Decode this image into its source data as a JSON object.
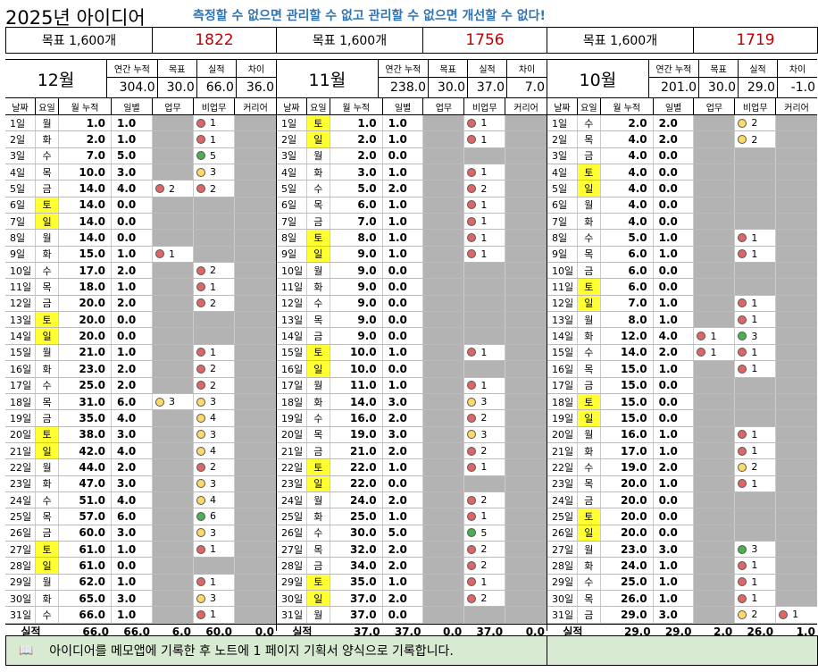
{
  "header": {
    "title": "2025년 아이디어",
    "slogan": "측정할 수 없으면 관리할 수 없고 관리할 수 없으면 개선할 수 없다!",
    "slogan_color": "#2e74b5"
  },
  "goals": [
    {
      "label": "목표 1,600개",
      "value": "1822",
      "value_color": "#c00000"
    },
    {
      "label": "목표 1,600개",
      "value": "1756",
      "value_color": "#c00000"
    },
    {
      "label": "목표 1,600개",
      "value": "1719",
      "value_color": "#c00000"
    }
  ],
  "columns": {
    "date": "날짜",
    "dow": "요일",
    "cum": "월 누적",
    "day": "일별",
    "work": "업무",
    "nonwork": "비업무",
    "career": "커리어"
  },
  "summary_labels": {
    "annual": "연간 누적",
    "goal": "목표",
    "actual": "실적",
    "diff": "차이"
  },
  "totals_label": "실적",
  "months": [
    {
      "name": "12월",
      "annual": "304.0",
      "goal": "30.0",
      "actual": "66.0",
      "diff": "36.0",
      "totals": {
        "cum": "66.0",
        "day": "66.0",
        "work": "6.0",
        "nonwork": "60.0",
        "career": "0.0"
      },
      "days": [
        {
          "d": "1일",
          "w": "월",
          "c": "1.0",
          "v": "1.0",
          "wk": "",
          "wkc": "",
          "nw": "1",
          "nwc": "r"
        },
        {
          "d": "2일",
          "w": "화",
          "c": "2.0",
          "v": "1.0",
          "wk": "",
          "wkc": "",
          "nw": "1",
          "nwc": "r"
        },
        {
          "d": "3일",
          "w": "수",
          "c": "7.0",
          "v": "5.0",
          "wk": "",
          "wkc": "",
          "nw": "5",
          "nwc": "g"
        },
        {
          "d": "4일",
          "w": "목",
          "c": "10.0",
          "v": "3.0",
          "wk": "",
          "wkc": "",
          "nw": "3",
          "nwc": "y"
        },
        {
          "d": "5일",
          "w": "금",
          "c": "14.0",
          "v": "4.0",
          "wk": "2",
          "wkc": "r",
          "nw": "2",
          "nwc": "r"
        },
        {
          "d": "6일",
          "w": "토",
          "c": "14.0",
          "v": "0.0",
          "wk": "",
          "wkc": "",
          "nw": "",
          "nwc": "",
          "we": true
        },
        {
          "d": "7일",
          "w": "일",
          "c": "14.0",
          "v": "0.0",
          "wk": "",
          "wkc": "",
          "nw": "",
          "nwc": "",
          "we": true
        },
        {
          "d": "8일",
          "w": "월",
          "c": "14.0",
          "v": "0.0",
          "wk": "",
          "wkc": "",
          "nw": "",
          "nwc": ""
        },
        {
          "d": "9일",
          "w": "화",
          "c": "15.0",
          "v": "1.0",
          "wk": "1",
          "wkc": "r",
          "nw": "",
          "nwc": ""
        },
        {
          "d": "10일",
          "w": "수",
          "c": "17.0",
          "v": "2.0",
          "wk": "",
          "wkc": "",
          "nw": "2",
          "nwc": "r"
        },
        {
          "d": "11일",
          "w": "목",
          "c": "18.0",
          "v": "1.0",
          "wk": "",
          "wkc": "",
          "nw": "1",
          "nwc": "r"
        },
        {
          "d": "12일",
          "w": "금",
          "c": "20.0",
          "v": "2.0",
          "wk": "",
          "wkc": "",
          "nw": "2",
          "nwc": "r"
        },
        {
          "d": "13일",
          "w": "토",
          "c": "20.0",
          "v": "0.0",
          "wk": "",
          "wkc": "",
          "nw": "",
          "nwc": "",
          "we": true
        },
        {
          "d": "14일",
          "w": "일",
          "c": "20.0",
          "v": "0.0",
          "wk": "",
          "wkc": "",
          "nw": "",
          "nwc": "",
          "we": true
        },
        {
          "d": "15일",
          "w": "월",
          "c": "21.0",
          "v": "1.0",
          "wk": "",
          "wkc": "",
          "nw": "1",
          "nwc": "r"
        },
        {
          "d": "16일",
          "w": "화",
          "c": "23.0",
          "v": "2.0",
          "wk": "",
          "wkc": "",
          "nw": "2",
          "nwc": "r"
        },
        {
          "d": "17일",
          "w": "수",
          "c": "25.0",
          "v": "2.0",
          "wk": "",
          "wkc": "",
          "nw": "2",
          "nwc": "r"
        },
        {
          "d": "18일",
          "w": "목",
          "c": "31.0",
          "v": "6.0",
          "wk": "3",
          "wkc": "y",
          "nw": "3",
          "nwc": "y"
        },
        {
          "d": "19일",
          "w": "금",
          "c": "35.0",
          "v": "4.0",
          "wk": "",
          "wkc": "",
          "nw": "4",
          "nwc": "y"
        },
        {
          "d": "20일",
          "w": "토",
          "c": "38.0",
          "v": "3.0",
          "wk": "",
          "wkc": "",
          "nw": "3",
          "nwc": "y",
          "we": true
        },
        {
          "d": "21일",
          "w": "일",
          "c": "42.0",
          "v": "4.0",
          "wk": "",
          "wkc": "",
          "nw": "4",
          "nwc": "y",
          "we": true
        },
        {
          "d": "22일",
          "w": "월",
          "c": "44.0",
          "v": "2.0",
          "wk": "",
          "wkc": "",
          "nw": "2",
          "nwc": "r"
        },
        {
          "d": "23일",
          "w": "화",
          "c": "47.0",
          "v": "3.0",
          "wk": "",
          "wkc": "",
          "nw": "3",
          "nwc": "y"
        },
        {
          "d": "24일",
          "w": "수",
          "c": "51.0",
          "v": "4.0",
          "wk": "",
          "wkc": "",
          "nw": "4",
          "nwc": "y"
        },
        {
          "d": "25일",
          "w": "목",
          "c": "57.0",
          "v": "6.0",
          "wk": "",
          "wkc": "",
          "nw": "6",
          "nwc": "g"
        },
        {
          "d": "26일",
          "w": "금",
          "c": "60.0",
          "v": "3.0",
          "wk": "",
          "wkc": "",
          "nw": "3",
          "nwc": "y"
        },
        {
          "d": "27일",
          "w": "토",
          "c": "61.0",
          "v": "1.0",
          "wk": "",
          "wkc": "",
          "nw": "1",
          "nwc": "r",
          "we": true
        },
        {
          "d": "28일",
          "w": "일",
          "c": "61.0",
          "v": "0.0",
          "wk": "",
          "wkc": "",
          "nw": "",
          "nwc": "",
          "we": true
        },
        {
          "d": "29일",
          "w": "월",
          "c": "62.0",
          "v": "1.0",
          "wk": "",
          "wkc": "",
          "nw": "1",
          "nwc": "r"
        },
        {
          "d": "30일",
          "w": "화",
          "c": "65.0",
          "v": "3.0",
          "wk": "",
          "wkc": "",
          "nw": "3",
          "nwc": "y"
        },
        {
          "d": "31일",
          "w": "수",
          "c": "66.0",
          "v": "1.0",
          "wk": "",
          "wkc": "",
          "nw": "1",
          "nwc": "r"
        }
      ]
    },
    {
      "name": "11월",
      "annual": "238.0",
      "goal": "30.0",
      "actual": "37.0",
      "diff": "7.0",
      "totals": {
        "cum": "37.0",
        "day": "37.0",
        "work": "0.0",
        "nonwork": "37.0",
        "career": "0.0"
      },
      "days": [
        {
          "d": "1일",
          "w": "토",
          "c": "1.0",
          "v": "1.0",
          "wk": "",
          "wkc": "",
          "nw": "1",
          "nwc": "r",
          "we": true
        },
        {
          "d": "2일",
          "w": "일",
          "c": "2.0",
          "v": "1.0",
          "wk": "",
          "wkc": "",
          "nw": "1",
          "nwc": "r",
          "we": true
        },
        {
          "d": "3일",
          "w": "월",
          "c": "2.0",
          "v": "0.0",
          "wk": "",
          "wkc": "",
          "nw": "",
          "nwc": ""
        },
        {
          "d": "4일",
          "w": "화",
          "c": "3.0",
          "v": "1.0",
          "wk": "",
          "wkc": "",
          "nw": "1",
          "nwc": "r"
        },
        {
          "d": "5일",
          "w": "수",
          "c": "5.0",
          "v": "2.0",
          "wk": "",
          "wkc": "",
          "nw": "2",
          "nwc": "r"
        },
        {
          "d": "6일",
          "w": "목",
          "c": "6.0",
          "v": "1.0",
          "wk": "",
          "wkc": "",
          "nw": "1",
          "nwc": "r"
        },
        {
          "d": "7일",
          "w": "금",
          "c": "7.0",
          "v": "1.0",
          "wk": "",
          "wkc": "",
          "nw": "1",
          "nwc": "r"
        },
        {
          "d": "8일",
          "w": "토",
          "c": "8.0",
          "v": "1.0",
          "wk": "",
          "wkc": "",
          "nw": "1",
          "nwc": "r",
          "we": true
        },
        {
          "d": "9일",
          "w": "일",
          "c": "9.0",
          "v": "1.0",
          "wk": "",
          "wkc": "",
          "nw": "1",
          "nwc": "r",
          "we": true
        },
        {
          "d": "10일",
          "w": "월",
          "c": "9.0",
          "v": "0.0",
          "wk": "",
          "wkc": "",
          "nw": "",
          "nwc": ""
        },
        {
          "d": "11일",
          "w": "화",
          "c": "9.0",
          "v": "0.0",
          "wk": "",
          "wkc": "",
          "nw": "",
          "nwc": ""
        },
        {
          "d": "12일",
          "w": "수",
          "c": "9.0",
          "v": "0.0",
          "wk": "",
          "wkc": "",
          "nw": "",
          "nwc": ""
        },
        {
          "d": "13일",
          "w": "목",
          "c": "9.0",
          "v": "0.0",
          "wk": "",
          "wkc": "",
          "nw": "",
          "nwc": ""
        },
        {
          "d": "14일",
          "w": "금",
          "c": "9.0",
          "v": "0.0",
          "wk": "",
          "wkc": "",
          "nw": "",
          "nwc": ""
        },
        {
          "d": "15일",
          "w": "토",
          "c": "10.0",
          "v": "1.0",
          "wk": "",
          "wkc": "",
          "nw": "1",
          "nwc": "r",
          "we": true
        },
        {
          "d": "16일",
          "w": "일",
          "c": "10.0",
          "v": "0.0",
          "wk": "",
          "wkc": "",
          "nw": "",
          "nwc": "",
          "we": true
        },
        {
          "d": "17일",
          "w": "월",
          "c": "11.0",
          "v": "1.0",
          "wk": "",
          "wkc": "",
          "nw": "1",
          "nwc": "r"
        },
        {
          "d": "18일",
          "w": "화",
          "c": "14.0",
          "v": "3.0",
          "wk": "",
          "wkc": "",
          "nw": "3",
          "nwc": "y"
        },
        {
          "d": "19일",
          "w": "수",
          "c": "16.0",
          "v": "2.0",
          "wk": "",
          "wkc": "",
          "nw": "2",
          "nwc": "r"
        },
        {
          "d": "20일",
          "w": "목",
          "c": "19.0",
          "v": "3.0",
          "wk": "",
          "wkc": "",
          "nw": "3",
          "nwc": "y"
        },
        {
          "d": "21일",
          "w": "금",
          "c": "21.0",
          "v": "2.0",
          "wk": "",
          "wkc": "",
          "nw": "2",
          "nwc": "r"
        },
        {
          "d": "22일",
          "w": "토",
          "c": "22.0",
          "v": "1.0",
          "wk": "",
          "wkc": "",
          "nw": "1",
          "nwc": "r",
          "we": true
        },
        {
          "d": "23일",
          "w": "일",
          "c": "22.0",
          "v": "0.0",
          "wk": "",
          "wkc": "",
          "nw": "",
          "nwc": "",
          "we": true
        },
        {
          "d": "24일",
          "w": "월",
          "c": "24.0",
          "v": "2.0",
          "wk": "",
          "wkc": "",
          "nw": "2",
          "nwc": "r"
        },
        {
          "d": "25일",
          "w": "화",
          "c": "25.0",
          "v": "1.0",
          "wk": "",
          "wkc": "",
          "nw": "1",
          "nwc": "r"
        },
        {
          "d": "26일",
          "w": "수",
          "c": "30.0",
          "v": "5.0",
          "wk": "",
          "wkc": "",
          "nw": "5",
          "nwc": "g"
        },
        {
          "d": "27일",
          "w": "목",
          "c": "32.0",
          "v": "2.0",
          "wk": "",
          "wkc": "",
          "nw": "2",
          "nwc": "r"
        },
        {
          "d": "28일",
          "w": "금",
          "c": "34.0",
          "v": "2.0",
          "wk": "",
          "wkc": "",
          "nw": "2",
          "nwc": "r"
        },
        {
          "d": "29일",
          "w": "토",
          "c": "35.0",
          "v": "1.0",
          "wk": "",
          "wkc": "",
          "nw": "1",
          "nwc": "r",
          "we": true
        },
        {
          "d": "30일",
          "w": "일",
          "c": "37.0",
          "v": "2.0",
          "wk": "",
          "wkc": "",
          "nw": "2",
          "nwc": "r",
          "we": true
        },
        {
          "d": "31일",
          "w": "월",
          "c": "37.0",
          "v": "0.0",
          "wk": "",
          "wkc": "",
          "nw": "",
          "nwc": ""
        }
      ]
    },
    {
      "name": "10월",
      "annual": "201.0",
      "goal": "30.0",
      "actual": "29.0",
      "diff": "-1.0",
      "totals": {
        "cum": "29.0",
        "day": "29.0",
        "work": "2.0",
        "nonwork": "26.0",
        "career": "1.0"
      },
      "days": [
        {
          "d": "1일",
          "w": "수",
          "c": "2.0",
          "v": "2.0",
          "wk": "",
          "wkc": "",
          "nw": "2",
          "nwc": "y"
        },
        {
          "d": "2일",
          "w": "목",
          "c": "4.0",
          "v": "2.0",
          "wk": "",
          "wkc": "",
          "nw": "2",
          "nwc": "y"
        },
        {
          "d": "3일",
          "w": "금",
          "c": "4.0",
          "v": "0.0",
          "wk": "",
          "wkc": "",
          "nw": "",
          "nwc": ""
        },
        {
          "d": "4일",
          "w": "토",
          "c": "4.0",
          "v": "0.0",
          "wk": "",
          "wkc": "",
          "nw": "",
          "nwc": "",
          "we": true
        },
        {
          "d": "5일",
          "w": "일",
          "c": "4.0",
          "v": "0.0",
          "wk": "",
          "wkc": "",
          "nw": "",
          "nwc": "",
          "we": true
        },
        {
          "d": "6일",
          "w": "월",
          "c": "4.0",
          "v": "0.0",
          "wk": "",
          "wkc": "",
          "nw": "",
          "nwc": ""
        },
        {
          "d": "7일",
          "w": "화",
          "c": "4.0",
          "v": "0.0",
          "wk": "",
          "wkc": "",
          "nw": "",
          "nwc": ""
        },
        {
          "d": "8일",
          "w": "수",
          "c": "5.0",
          "v": "1.0",
          "wk": "",
          "wkc": "",
          "nw": "1",
          "nwc": "r"
        },
        {
          "d": "9일",
          "w": "목",
          "c": "6.0",
          "v": "1.0",
          "wk": "",
          "wkc": "",
          "nw": "1",
          "nwc": "r"
        },
        {
          "d": "10일",
          "w": "금",
          "c": "6.0",
          "v": "0.0",
          "wk": "",
          "wkc": "",
          "nw": "",
          "nwc": ""
        },
        {
          "d": "11일",
          "w": "토",
          "c": "6.0",
          "v": "0.0",
          "wk": "",
          "wkc": "",
          "nw": "",
          "nwc": "",
          "we": true
        },
        {
          "d": "12일",
          "w": "일",
          "c": "7.0",
          "v": "1.0",
          "wk": "",
          "wkc": "",
          "nw": "1",
          "nwc": "r",
          "we": true
        },
        {
          "d": "13일",
          "w": "월",
          "c": "8.0",
          "v": "1.0",
          "wk": "",
          "wkc": "",
          "nw": "1",
          "nwc": "r"
        },
        {
          "d": "14일",
          "w": "화",
          "c": "12.0",
          "v": "4.0",
          "wk": "1",
          "wkc": "r",
          "nw": "3",
          "nwc": "g"
        },
        {
          "d": "15일",
          "w": "수",
          "c": "14.0",
          "v": "2.0",
          "wk": "1",
          "wkc": "r",
          "nw": "1",
          "nwc": "r"
        },
        {
          "d": "16일",
          "w": "목",
          "c": "15.0",
          "v": "1.0",
          "wk": "",
          "wkc": "",
          "nw": "1",
          "nwc": "r"
        },
        {
          "d": "17일",
          "w": "금",
          "c": "15.0",
          "v": "0.0",
          "wk": "",
          "wkc": "",
          "nw": "",
          "nwc": ""
        },
        {
          "d": "18일",
          "w": "토",
          "c": "15.0",
          "v": "0.0",
          "wk": "",
          "wkc": "",
          "nw": "",
          "nwc": "",
          "we": true
        },
        {
          "d": "19일",
          "w": "일",
          "c": "15.0",
          "v": "0.0",
          "wk": "",
          "wkc": "",
          "nw": "",
          "nwc": "",
          "we": true
        },
        {
          "d": "20일",
          "w": "월",
          "c": "16.0",
          "v": "1.0",
          "wk": "",
          "wkc": "",
          "nw": "1",
          "nwc": "r"
        },
        {
          "d": "21일",
          "w": "화",
          "c": "17.0",
          "v": "1.0",
          "wk": "",
          "wkc": "",
          "nw": "1",
          "nwc": "r"
        },
        {
          "d": "22일",
          "w": "수",
          "c": "19.0",
          "v": "2.0",
          "wk": "",
          "wkc": "",
          "nw": "2",
          "nwc": "y"
        },
        {
          "d": "23일",
          "w": "목",
          "c": "20.0",
          "v": "1.0",
          "wk": "",
          "wkc": "",
          "nw": "1",
          "nwc": "r"
        },
        {
          "d": "24일",
          "w": "금",
          "c": "20.0",
          "v": "0.0",
          "wk": "",
          "wkc": "",
          "nw": "",
          "nwc": ""
        },
        {
          "d": "25일",
          "w": "토",
          "c": "20.0",
          "v": "0.0",
          "wk": "",
          "wkc": "",
          "nw": "",
          "nwc": "",
          "we": true
        },
        {
          "d": "26일",
          "w": "일",
          "c": "20.0",
          "v": "0.0",
          "wk": "",
          "wkc": "",
          "nw": "",
          "nwc": "",
          "we": true
        },
        {
          "d": "27일",
          "w": "월",
          "c": "23.0",
          "v": "3.0",
          "wk": "",
          "wkc": "",
          "nw": "3",
          "nwc": "g"
        },
        {
          "d": "28일",
          "w": "화",
          "c": "24.0",
          "v": "1.0",
          "wk": "",
          "wkc": "",
          "nw": "1",
          "nwc": "r"
        },
        {
          "d": "29일",
          "w": "수",
          "c": "25.0",
          "v": "1.0",
          "wk": "",
          "wkc": "",
          "nw": "1",
          "nwc": "r"
        },
        {
          "d": "30일",
          "w": "목",
          "c": "26.0",
          "v": "1.0",
          "wk": "",
          "wkc": "",
          "nw": "1",
          "nwc": "r"
        },
        {
          "d": "31일",
          "w": "금",
          "c": "29.0",
          "v": "3.0",
          "wk": "",
          "wkc": "",
          "nw": "2",
          "nwc": "y",
          "cr": "1",
          "crc": "r"
        }
      ]
    }
  ],
  "note": {
    "icon": "book-icon",
    "text": "아이디어를 메모앱에 기록한 후 노트에 1 페이지 기획서 양식으로 기록합니다."
  }
}
